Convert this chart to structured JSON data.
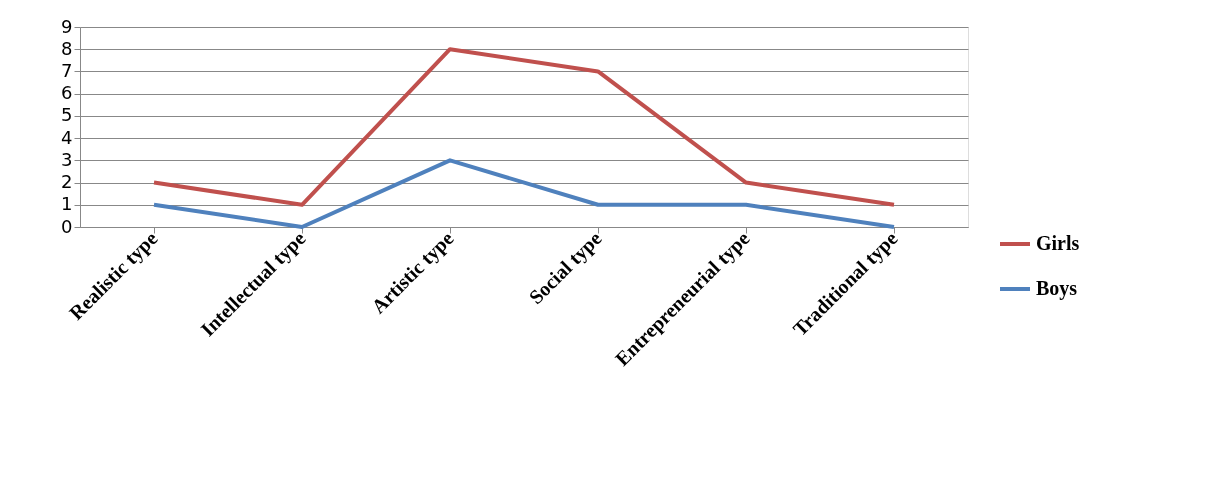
{
  "chart_data": {
    "type": "line",
    "categories": [
      "Realistic type",
      "Intellectual type",
      "Artistic type",
      "Social type",
      "Entrepreneurial type",
      "Traditional type"
    ],
    "series": [
      {
        "name": "Girls",
        "color": "#c0504d",
        "values": [
          2,
          1,
          8,
          7,
          2,
          1
        ]
      },
      {
        "name": "Boys",
        "color": "#4f81bd",
        "values": [
          1,
          0,
          3,
          1,
          1,
          0
        ]
      }
    ],
    "ylim": [
      0,
      9
    ],
    "yticks": [
      0,
      1,
      2,
      3,
      4,
      5,
      6,
      7,
      8,
      9
    ],
    "grid": "y",
    "legend": "right",
    "marker": "none",
    "line_style": "solid"
  }
}
